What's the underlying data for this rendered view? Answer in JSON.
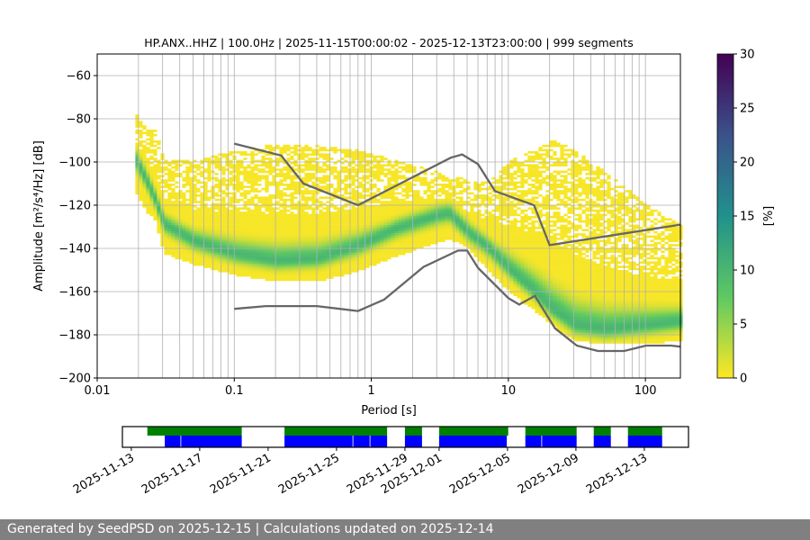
{
  "chart_data": {
    "type": "heatmap",
    "title": "HP.ANX..HHZ | 100.0Hz | 2025-11-15T00:00:02 - 2025-12-13T23:00:00 | 999 segments",
    "xlabel": "Period [s]",
    "ylabel": "Amplitude [m²/s⁴/Hz] [dB]",
    "xscale": "log",
    "xlim": [
      0.01,
      180
    ],
    "ylim": [
      -200,
      -50
    ],
    "xticks": [
      {
        "v": 0.01,
        "label": "0.01"
      },
      {
        "v": 0.1,
        "label": "0.1"
      },
      {
        "v": 1,
        "label": "1"
      },
      {
        "v": 10,
        "label": "10"
      },
      {
        "v": 100,
        "label": "100"
      }
    ],
    "yticks": [
      {
        "v": -60,
        "label": "−60"
      },
      {
        "v": -80,
        "label": "−80"
      },
      {
        "v": -100,
        "label": "−100"
      },
      {
        "v": -120,
        "label": "−120"
      },
      {
        "v": -140,
        "label": "−140"
      },
      {
        "v": -160,
        "label": "−160"
      },
      {
        "v": -180,
        "label": "−180"
      },
      {
        "v": -200,
        "label": "−200"
      }
    ],
    "grid": true,
    "colorbar": {
      "label": "[%]",
      "range": [
        0,
        30
      ],
      "colormap": "viridis_r",
      "ticks": [
        {
          "v": 0,
          "label": "0"
        },
        {
          "v": 5,
          "label": "5"
        },
        {
          "v": 10,
          "label": "10"
        },
        {
          "v": 15,
          "label": "15"
        },
        {
          "v": 20,
          "label": "20"
        },
        {
          "v": 25,
          "label": "25"
        },
        {
          "v": 30,
          "label": "30"
        }
      ]
    },
    "density_mode": {
      "period": [
        0.019,
        0.022,
        0.026,
        0.03,
        0.05,
        0.1,
        0.2,
        0.4,
        0.8,
        1.5,
        3,
        3.6,
        4.5,
        5,
        7,
        10,
        15,
        20,
        30,
        50,
        100,
        180
      ],
      "db": [
        -100,
        -108,
        -118,
        -129,
        -137,
        -143,
        -146,
        -145,
        -139,
        -131,
        -125,
        -124,
        -130,
        -133,
        -140,
        -150,
        -160,
        -168,
        -176,
        -178,
        -176,
        -174
      ],
      "upper_extent_db": [
        -79,
        -85,
        -86,
        -100,
        -100,
        -95,
        -92,
        -93,
        -95,
        -100,
        -105,
        -108,
        -108,
        -110,
        -110,
        -100,
        -95,
        -90,
        -95,
        -105,
        -120,
        -130
      ],
      "lower_extent_db": [
        -115,
        -122,
        -127,
        -142,
        -147,
        -152,
        -155,
        -155,
        -150,
        -143,
        -137,
        -135,
        -138,
        -140,
        -150,
        -160,
        -168,
        -175,
        -182,
        -184,
        -184,
        -182
      ]
    },
    "noise_models": [
      {
        "name": "high",
        "color": "#666666",
        "period": [
          0.1,
          0.22,
          0.32,
          0.8,
          3.8,
          4.6,
          6,
          8,
          15.4,
          20,
          180
        ],
        "db": [
          -91.5,
          -97,
          -110,
          -120,
          -98,
          -96.5,
          -101,
          -113.5,
          -120,
          -138.5,
          -129
        ]
      },
      {
        "name": "low",
        "color": "#666666",
        "period": [
          0.1,
          0.17,
          0.4,
          0.8,
          1.24,
          2.4,
          4.3,
          5,
          6,
          10,
          12,
          15.6,
          21.9,
          31.6,
          45,
          70,
          101,
          154,
          180
        ],
        "db": [
          -168,
          -166.7,
          -166.7,
          -169,
          -163.7,
          -148.6,
          -141,
          -141,
          -149,
          -163,
          -166,
          -162,
          -177,
          -185,
          -187.5,
          -187.5,
          -185,
          -185,
          -185.5
        ]
      }
    ],
    "timeline": {
      "xlim": [
        "2025-11-12T11:30",
        "2025-12-15T14:00"
      ],
      "ticks": [
        "2025-11-13",
        "2025-11-17",
        "2025-11-21",
        "2025-11-25",
        "2025-11-29",
        "2025-12-01",
        "2025-12-05",
        "2025-12-09",
        "2025-12-13"
      ],
      "green_color": "#008000",
      "blue_color": "#0000ff",
      "green_segments": [
        [
          "2025-11-13T22:30",
          "2025-11-19T11:00"
        ],
        [
          "2025-11-21T23:00",
          "2025-11-27T23:00"
        ],
        [
          "2025-11-29T00:00",
          "2025-11-30T00:00"
        ],
        [
          "2025-12-01T00:00",
          "2025-12-05T01:00"
        ],
        [
          "2025-12-06T01:00",
          "2025-12-09T01:00"
        ],
        [
          "2025-12-10T01:00",
          "2025-12-11T01:00"
        ],
        [
          "2025-12-12T01:00",
          "2025-12-14T01:00"
        ]
      ],
      "blue_segments": [
        [
          "2025-11-14T23:00",
          "2025-11-15T21:00"
        ],
        [
          "2025-11-15T22:00",
          "2025-11-19T11:00"
        ],
        [
          "2025-11-21T23:00",
          "2025-11-25T22:30"
        ],
        [
          "2025-11-25T23:30",
          "2025-11-26T22:30"
        ],
        [
          "2025-11-26T23:30",
          "2025-11-27T23:00"
        ],
        [
          "2025-11-29T00:00",
          "2025-11-30T00:00"
        ],
        [
          "2025-12-01T00:00",
          "2025-12-04T23:00"
        ],
        [
          "2025-12-06T01:00",
          "2025-12-06T23:30"
        ],
        [
          "2025-12-07T00:30",
          "2025-12-09T01:00"
        ],
        [
          "2025-12-10T01:00",
          "2025-12-11T01:00"
        ],
        [
          "2025-12-12T01:00",
          "2025-12-14T01:00"
        ]
      ]
    }
  },
  "footer": {
    "text": "Generated by SeedPSD on 2025-12-15 | Calculations updated on 2025-12-14"
  }
}
